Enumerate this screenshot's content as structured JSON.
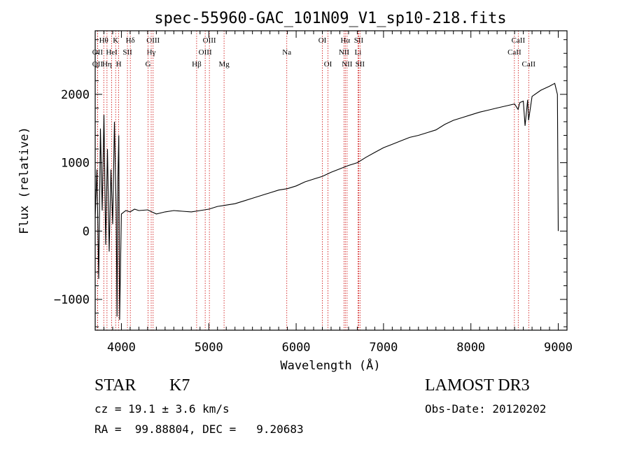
{
  "chart_data": {
    "type": "line",
    "title": "spec-55960-GAC_101N09_V1_sp10-218.fits",
    "xlabel": "Wavelength (Å)",
    "ylabel": "Flux (relative)",
    "xlim": [
      3700,
      9100
    ],
    "ylim": [
      -1450,
      2930
    ],
    "x_ticks": [
      4000,
      5000,
      6000,
      7000,
      8000,
      9000
    ],
    "y_ticks": [
      -1000,
      0,
      1000,
      2000
    ],
    "series": [
      {
        "name": "flux",
        "points": [
          [
            3700,
            200
          ],
          [
            3720,
            900
          ],
          [
            3740,
            -700
          ],
          [
            3760,
            1500
          ],
          [
            3780,
            300
          ],
          [
            3800,
            1700
          ],
          [
            3820,
            -200
          ],
          [
            3840,
            1200
          ],
          [
            3860,
            -300
          ],
          [
            3880,
            900
          ],
          [
            3900,
            100
          ],
          [
            3920,
            1600
          ],
          [
            3940,
            300
          ],
          [
            3950,
            -1250
          ],
          [
            3960,
            800
          ],
          [
            3970,
            1400
          ],
          [
            3980,
            -1300
          ],
          [
            4000,
            250
          ],
          [
            4050,
            300
          ],
          [
            4100,
            280
          ],
          [
            4150,
            320
          ],
          [
            4200,
            300
          ],
          [
            4300,
            310
          ],
          [
            4400,
            250
          ],
          [
            4500,
            280
          ],
          [
            4600,
            300
          ],
          [
            4700,
            290
          ],
          [
            4800,
            280
          ],
          [
            4900,
            300
          ],
          [
            5000,
            320
          ],
          [
            5100,
            360
          ],
          [
            5200,
            380
          ],
          [
            5300,
            400
          ],
          [
            5400,
            440
          ],
          [
            5500,
            480
          ],
          [
            5600,
            520
          ],
          [
            5700,
            560
          ],
          [
            5800,
            600
          ],
          [
            5900,
            620
          ],
          [
            6000,
            660
          ],
          [
            6100,
            720
          ],
          [
            6200,
            760
          ],
          [
            6300,
            800
          ],
          [
            6400,
            860
          ],
          [
            6500,
            910
          ],
          [
            6600,
            960
          ],
          [
            6700,
            1000
          ],
          [
            6800,
            1080
          ],
          [
            6900,
            1150
          ],
          [
            7000,
            1220
          ],
          [
            7100,
            1270
          ],
          [
            7200,
            1320
          ],
          [
            7300,
            1370
          ],
          [
            7400,
            1400
          ],
          [
            7500,
            1440
          ],
          [
            7600,
            1480
          ],
          [
            7700,
            1560
          ],
          [
            7800,
            1620
          ],
          [
            7900,
            1660
          ],
          [
            8000,
            1700
          ],
          [
            8100,
            1740
          ],
          [
            8200,
            1770
          ],
          [
            8300,
            1800
          ],
          [
            8400,
            1830
          ],
          [
            8500,
            1860
          ],
          [
            8540,
            1780
          ],
          [
            8560,
            1880
          ],
          [
            8600,
            1900
          ],
          [
            8620,
            1540
          ],
          [
            8650,
            1920
          ],
          [
            8660,
            1620
          ],
          [
            8700,
            1970
          ],
          [
            8800,
            2060
          ],
          [
            8900,
            2120
          ],
          [
            8960,
            2160
          ],
          [
            8990,
            2000
          ],
          [
            9000,
            0
          ]
        ]
      }
    ],
    "line_markers": [
      {
        "label": "Hθ",
        "x": 3798,
        "row": 1
      },
      {
        "label": "OII",
        "x": 3727,
        "row": 2
      },
      {
        "label": "OII",
        "x": 3727,
        "row": 3
      },
      {
        "label": "Hη",
        "x": 3835,
        "row": 3
      },
      {
        "label": "HeI",
        "x": 3889,
        "row": 2
      },
      {
        "label": "K",
        "x": 3934,
        "row": 1
      },
      {
        "label": "H",
        "x": 3969,
        "row": 3
      },
      {
        "label": "SII",
        "x": 4069,
        "row": 2
      },
      {
        "label": "Hδ",
        "x": 4102,
        "row": 1
      },
      {
        "label": "OIII",
        "x": 4363,
        "row": 1
      },
      {
        "label": "Hγ",
        "x": 4341,
        "row": 2
      },
      {
        "label": "G",
        "x": 4305,
        "row": 3
      },
      {
        "label": "Hβ",
        "x": 4861,
        "row": 3
      },
      {
        "label": "OIII",
        "x": 5007,
        "row": 1
      },
      {
        "label": "OIII",
        "x": 4959,
        "row": 2
      },
      {
        "label": "Mg",
        "x": 5175,
        "row": 3
      },
      {
        "label": "Na",
        "x": 5893,
        "row": 2
      },
      {
        "label": "OI",
        "x": 6300,
        "row": 1
      },
      {
        "label": "OI",
        "x": 6364,
        "row": 3
      },
      {
        "label": "Hα",
        "x": 6563,
        "row": 1
      },
      {
        "label": "NII",
        "x": 6548,
        "row": 2
      },
      {
        "label": "NII",
        "x": 6583,
        "row": 3
      },
      {
        "label": "SII",
        "x": 6716,
        "row": 1
      },
      {
        "label": "Li",
        "x": 6708,
        "row": 2
      },
      {
        "label": "SII",
        "x": 6731,
        "row": 3
      },
      {
        "label": "CaII",
        "x": 8542,
        "row": 1
      },
      {
        "label": "CaII",
        "x": 8498,
        "row": 2
      },
      {
        "label": "CaII",
        "x": 8662,
        "row": 3
      }
    ],
    "colors": {
      "line": "#000000",
      "marker": "#cc0000"
    }
  },
  "info": {
    "class": "STAR",
    "subclass": "K7",
    "survey": "LAMOST DR3",
    "cz": "cz = 19.1 ± 3.6 km/s",
    "obs_date": "Obs-Date: 20120202",
    "coords": "RA =  99.88804, DEC =   9.20683"
  }
}
